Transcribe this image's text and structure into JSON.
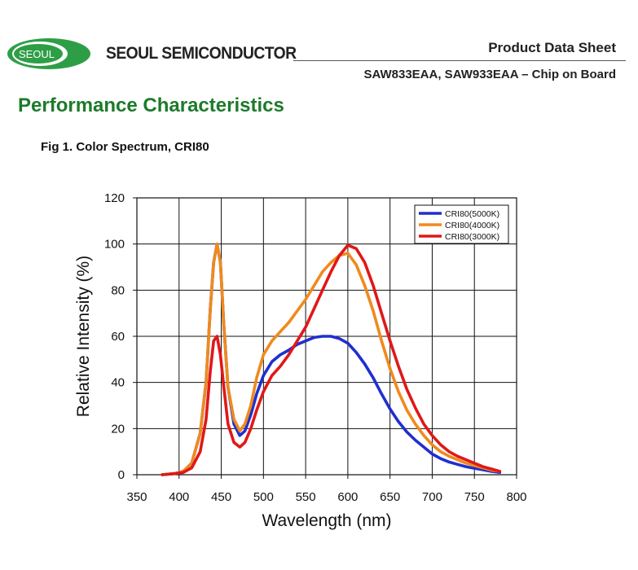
{
  "header": {
    "logo_text": "SEOUL",
    "brand": "SEOUL SEMICONDUCTOR",
    "doc_type": "Product Data Sheet",
    "doc_subtitle": "SAW833EAA, SAW933EAA – Chip on Board"
  },
  "section": {
    "title": "Performance Characteristics",
    "figure_caption": "Fig 1. Color Spectrum, CRI80"
  },
  "colors": {
    "brand_green": "#1d7a2a",
    "logo_green": "#2e9e46"
  },
  "chart_data": {
    "type": "line",
    "title": "",
    "xlabel": "Wavelength (nm)",
    "ylabel": "Relative Intensity (%)",
    "xlim": [
      350,
      800
    ],
    "ylim": [
      0,
      120
    ],
    "xticks": [
      350,
      400,
      450,
      500,
      550,
      600,
      650,
      700,
      750,
      800
    ],
    "yticks": [
      0,
      20,
      40,
      60,
      80,
      100,
      120
    ],
    "grid": true,
    "legend_position": "top-right",
    "series": [
      {
        "name": "CRI80(5000K)",
        "color": "#1f2fd0",
        "x": [
          380,
          395,
          405,
          415,
          425,
          432,
          437,
          441,
          445,
          449,
          453,
          458,
          465,
          472,
          478,
          485,
          492,
          500,
          510,
          520,
          530,
          540,
          550,
          560,
          570,
          580,
          590,
          600,
          610,
          620,
          630,
          640,
          650,
          660,
          670,
          680,
          690,
          700,
          710,
          720,
          730,
          740,
          750,
          760,
          770,
          780
        ],
        "values": [
          0,
          0.5,
          1.5,
          5,
          18,
          40,
          72,
          92,
          100,
          92,
          65,
          38,
          22,
          17,
          19,
          26,
          35,
          43,
          49,
          52,
          54,
          56.5,
          58,
          59.5,
          60,
          60,
          59,
          57,
          53,
          48,
          42,
          35,
          28.5,
          23,
          18.5,
          15,
          12,
          9,
          7,
          5.5,
          4.5,
          3.5,
          2.8,
          2.2,
          1.5,
          1
        ]
      },
      {
        "name": "CRI80(4000K)",
        "color": "#f08a1d",
        "x": [
          380,
          395,
          405,
          415,
          425,
          432,
          437,
          441,
          445,
          449,
          453,
          458,
          465,
          472,
          478,
          485,
          492,
          500,
          510,
          520,
          530,
          540,
          550,
          560,
          570,
          580,
          590,
          600,
          610,
          620,
          630,
          640,
          650,
          660,
          670,
          680,
          690,
          700,
          710,
          720,
          730,
          740,
          750,
          760,
          770,
          780
        ],
        "values": [
          0,
          0.5,
          1.5,
          5,
          18,
          40,
          72,
          92,
          100,
          92,
          65,
          38,
          24,
          19,
          22,
          30,
          42,
          52,
          58,
          62,
          66,
          71,
          76,
          82,
          88,
          92,
          95,
          96,
          91,
          82,
          71,
          58,
          46,
          36,
          28,
          22,
          17,
          13,
          10,
          8,
          6.5,
          5,
          4,
          3,
          2,
          1.5
        ]
      },
      {
        "name": "CRI80(3000K)",
        "color": "#e01818",
        "x": [
          380,
          395,
          405,
          415,
          425,
          432,
          437,
          441,
          445,
          449,
          453,
          458,
          465,
          472,
          478,
          485,
          492,
          500,
          510,
          520,
          530,
          540,
          550,
          560,
          570,
          580,
          590,
          600,
          610,
          620,
          630,
          640,
          650,
          660,
          670,
          680,
          690,
          700,
          710,
          720,
          730,
          740,
          750,
          760,
          770,
          780
        ],
        "values": [
          0,
          0.5,
          1,
          3,
          10,
          24,
          45,
          58,
          60,
          52,
          38,
          22,
          14,
          12,
          14,
          20,
          28,
          36,
          43,
          47,
          52,
          58,
          64,
          72,
          80,
          88,
          95,
          99.5,
          98,
          92,
          82,
          70,
          58,
          47,
          37,
          29,
          22,
          17,
          13,
          10,
          8,
          6.5,
          5,
          3.5,
          2.5,
          1.5
        ]
      }
    ]
  }
}
